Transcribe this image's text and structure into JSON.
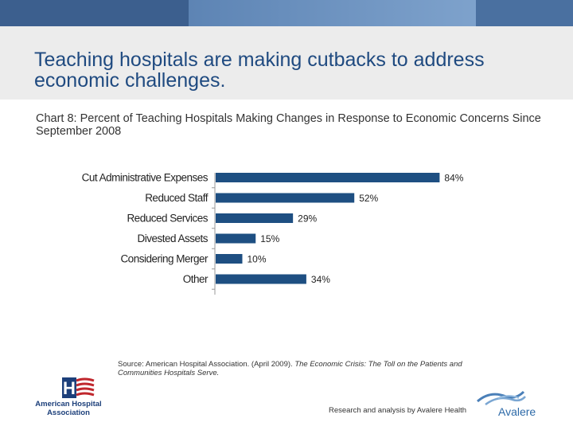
{
  "header": {
    "title": "Teaching hospitals are making cutbacks to address economic challenges."
  },
  "caption": "Chart 8: Percent of Teaching Hospitals Making Changes in Response to Economic Concerns Since September 2008",
  "chart_data": {
    "type": "bar",
    "orientation": "horizontal",
    "categories": [
      "Cut Administrative Expenses",
      "Reduced Staff",
      "Reduced Services",
      "Divested Assets",
      "Considering Merger",
      "Other"
    ],
    "values": [
      84,
      52,
      29,
      15,
      10,
      34
    ],
    "data_labels": [
      "84%",
      "52%",
      "29%",
      "15%",
      "10%",
      "34%"
    ],
    "xlim": [
      0,
      100
    ],
    "grid": false,
    "legend": "none",
    "colors": {
      "bar": "#1e4f82",
      "axis": "#999999",
      "label": "#222222"
    }
  },
  "source": {
    "prefix": "Source: American Hospital Association. (April 2009).",
    "title": "The Economic Crisis: The Toll on the Patients and Communities Hospitals Serve."
  },
  "footer": {
    "credit": "Research and analysis by Avalere Health",
    "aha_logo_text": "American Hospital Association",
    "aha_logo_letter": "H",
    "avalere_logo_text": "Avalere"
  }
}
